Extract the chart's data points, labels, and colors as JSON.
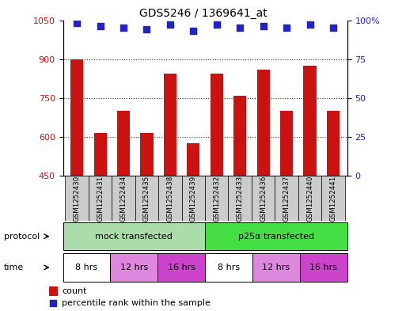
{
  "title": "GDS5246 / 1369641_at",
  "samples": [
    "GSM1252430",
    "GSM1252431",
    "GSM1252434",
    "GSM1252435",
    "GSM1252438",
    "GSM1252439",
    "GSM1252432",
    "GSM1252433",
    "GSM1252436",
    "GSM1252437",
    "GSM1252440",
    "GSM1252441"
  ],
  "bar_values": [
    900,
    615,
    700,
    615,
    845,
    575,
    845,
    760,
    860,
    700,
    875,
    700
  ],
  "percentile_values": [
    98,
    96,
    95,
    94,
    97,
    93,
    97,
    95,
    96,
    95,
    97,
    95
  ],
  "ylim_left": [
    450,
    1050
  ],
  "ylim_right": [
    0,
    100
  ],
  "yticks_left": [
    450,
    600,
    750,
    900,
    1050
  ],
  "yticks_right": [
    0,
    25,
    50,
    75,
    100
  ],
  "bar_color": "#cc1111",
  "dot_color": "#2222cc",
  "protocol_labels": [
    "mock transfected",
    "p25α transfected"
  ],
  "protocol_colors": [
    "#aaddaa",
    "#44dd44"
  ],
  "time_labels": [
    "8 hrs",
    "12 hrs",
    "16 hrs",
    "8 hrs",
    "12 hrs",
    "16 hrs"
  ],
  "time_colors": [
    "#ffffff",
    "#dd88dd",
    "#cc44cc",
    "#ffffff",
    "#dd88dd",
    "#cc44cc"
  ],
  "legend_count": "count",
  "legend_percentile": "percentile rank within the sample",
  "grid_color": "#333333",
  "sample_bg_color": "#cccccc",
  "fig_width": 5.13,
  "fig_height": 3.93,
  "dpi": 100
}
